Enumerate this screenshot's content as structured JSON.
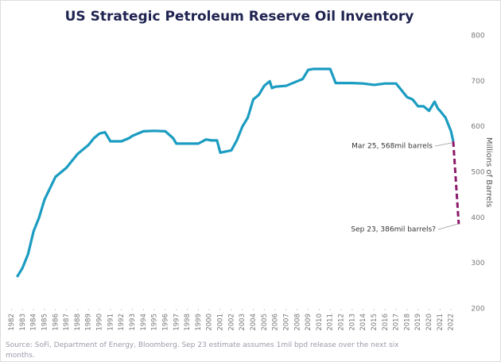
{
  "chart_data": {
    "type": "line",
    "title": "US Strategic Petroleum Reserve Oil Inventory",
    "y_label": "Millions of Barrels",
    "source": "Source: SoFi, Department of Energy, Bloomberg. Sep 23 estimate assumes 1mil bpd release over the next six months.",
    "xlim": [
      1981.6,
      2023
    ],
    "ylim": [
      200,
      800
    ],
    "yticks": [
      200,
      300,
      400,
      500,
      600,
      700,
      800
    ],
    "xticks": [
      1982,
      1983,
      1984,
      1985,
      1986,
      1987,
      1988,
      1989,
      1990,
      1991,
      1992,
      1993,
      1994,
      1995,
      1996,
      1997,
      1998,
      1999,
      2000,
      2001,
      2002,
      2003,
      2004,
      2005,
      2006,
      2007,
      2008,
      2009,
      2010,
      2011,
      2012,
      2013,
      2014,
      2015,
      2016,
      2017,
      2018,
      2019,
      2020,
      2021,
      2022
    ],
    "series": [
      {
        "color": "#1b9cc1",
        "dashed": false,
        "x": [
          1982.5,
          1983,
          1983.5,
          1984,
          1984.5,
          1985,
          1985.5,
          1986,
          1986.5,
          1987,
          1987.5,
          1988,
          1988.5,
          1989,
          1989.5,
          1990,
          1990.5,
          1991,
          1992,
          1992.7,
          1993,
          1994,
          1995,
          1996,
          1996.7,
          1997,
          1998,
          1999,
          1999.7,
          2000.2,
          2000.7,
          2001,
          2002,
          2002.5,
          2003,
          2003.5,
          2004,
          2004.5,
          2005,
          2005.5,
          2005.7,
          2006,
          2007,
          2008,
          2008.5,
          2009,
          2009.5,
          2010,
          2011,
          2011.5,
          2012,
          2013,
          2014,
          2015,
          2016,
          2017,
          2017.5,
          2018,
          2018.5,
          2019,
          2019.5,
          2020,
          2020.5,
          2020.8,
          2021,
          2021.5,
          2022,
          2022.2
        ],
        "values": [
          270,
          290,
          320,
          370,
          400,
          440,
          465,
          490,
          500,
          510,
          525,
          540,
          550,
          560,
          575,
          585,
          588,
          568,
          568,
          575,
          580,
          590,
          591,
          590,
          575,
          563,
          563,
          563,
          572,
          570,
          570,
          543,
          548,
          570,
          600,
          620,
          660,
          670,
          690,
          700,
          685,
          688,
          690,
          700,
          705,
          725,
          727,
          727,
          727,
          696,
          696,
          696,
          695,
          692,
          695,
          695,
          680,
          665,
          660,
          645,
          645,
          635,
          655,
          640,
          635,
          620,
          590,
          568
        ]
      },
      {
        "color": "#8b1a6b",
        "dashed": true,
        "x": [
          2022.2,
          2022.7
        ],
        "values": [
          568,
          386
        ]
      }
    ],
    "annotations": [
      "Mar 25, 568mil barrels",
      "Sep 23,  386mil barrels?"
    ]
  }
}
